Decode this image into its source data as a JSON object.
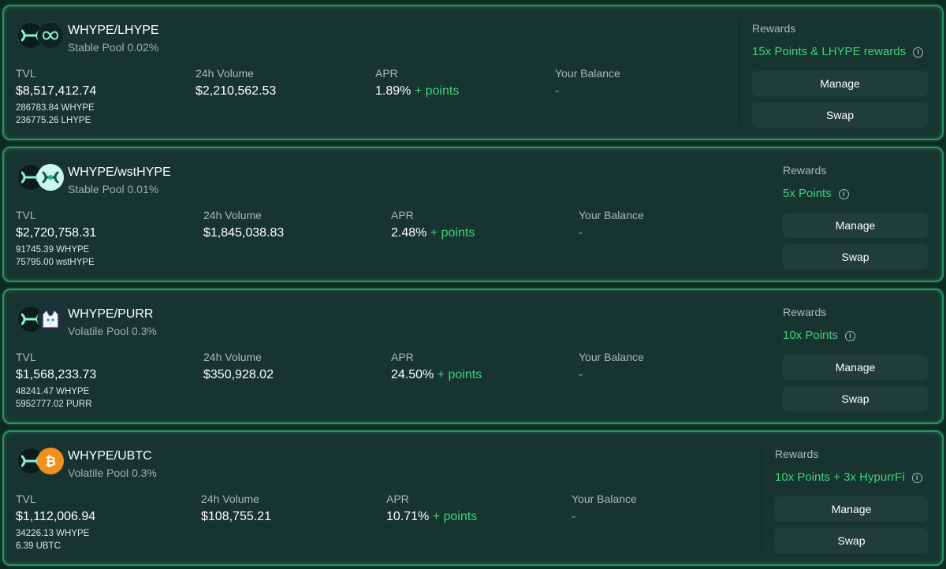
{
  "labels": {
    "tvl": "TVL",
    "volume": "24h Volume",
    "apr": "APR",
    "balance": "Your Balance",
    "rewards": "Rewards",
    "points_suffix": "+ points",
    "manage": "Manage",
    "swap": "Swap"
  },
  "colors": {
    "accent_green": "#3fd27a",
    "card_bg": "#173430",
    "card_border": "#2f8f66",
    "button_bg": "#213d39"
  },
  "pools": [
    {
      "pair": "WHYPE/LHYPE",
      "pool_type": "Stable Pool 0.02%",
      "icons": [
        "whype-icon",
        "lhype-infinity-icon"
      ],
      "tvl": "$8,517,412.74",
      "reserve_a": "286783.84 WHYPE",
      "reserve_b": "236775.26 LHYPE",
      "volume": "$2,210,562.53",
      "apr": "1.89%",
      "balance": "-",
      "rewards": "15x Points & LHYPE rewards"
    },
    {
      "pair": "WHYPE/wstHYPE",
      "pool_type": "Stable Pool 0.01%",
      "icons": [
        "whype-icon",
        "wsthype-icon"
      ],
      "tvl": "$2,720,758.31",
      "reserve_a": "91745.39 WHYPE",
      "reserve_b": "75795.00 wstHYPE",
      "volume": "$1,845,038.83",
      "apr": "2.48%",
      "balance": "-",
      "rewards": "5x Points"
    },
    {
      "pair": "WHYPE/PURR",
      "pool_type": "Volatile Pool 0.3%",
      "icons": [
        "whype-icon",
        "purr-cat-icon"
      ],
      "tvl": "$1,568,233.73",
      "reserve_a": "48241.47 WHYPE",
      "reserve_b": "5952777.02 PURR",
      "volume": "$350,928.02",
      "apr": "24.50%",
      "balance": "-",
      "rewards": "10x Points"
    },
    {
      "pair": "WHYPE/UBTC",
      "pool_type": "Volatile Pool 0.3%",
      "icons": [
        "whype-icon",
        "bitcoin-icon"
      ],
      "tvl": "$1,112,006.94",
      "reserve_a": "34226.13 WHYPE",
      "reserve_b": "6.39 UBTC",
      "volume": "$108,755.21",
      "apr": "10.71%",
      "balance": "-",
      "rewards": "10x Points + 3x HypurrFi"
    }
  ]
}
